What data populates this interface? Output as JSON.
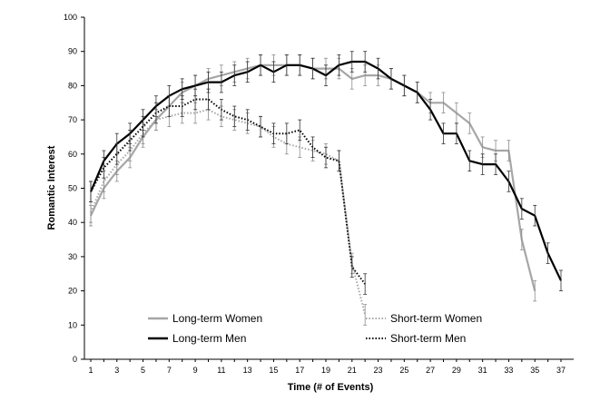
{
  "chart_data": {
    "type": "line",
    "title": "",
    "xlabel": "Time (# of Events)",
    "ylabel": "Romantic Interest",
    "xlim": [
      1,
      37
    ],
    "ylim": [
      0,
      100
    ],
    "x_ticks": [
      1,
      3,
      5,
      7,
      9,
      11,
      13,
      15,
      17,
      19,
      21,
      23,
      25,
      27,
      29,
      31,
      33,
      35,
      37
    ],
    "y_ticks": [
      0,
      10,
      20,
      30,
      40,
      50,
      60,
      70,
      80,
      90,
      100
    ],
    "legend": {
      "placement": "bottom"
    },
    "series": [
      {
        "name": "Long-term Women",
        "color": "#a6a6a6",
        "style": "solid",
        "x": [
          1,
          2,
          3,
          4,
          5,
          6,
          7,
          8,
          9,
          10,
          11,
          12,
          13,
          14,
          15,
          16,
          17,
          18,
          19,
          20,
          21,
          22,
          23,
          24,
          25,
          26,
          27,
          28,
          29,
          30,
          31,
          32,
          33,
          34,
          35
        ],
        "values": [
          42,
          50,
          55,
          59,
          65,
          70,
          74,
          78,
          80,
          82,
          83,
          84,
          85,
          86,
          86,
          86,
          86,
          85,
          85,
          85,
          82,
          83,
          83,
          82,
          80,
          78,
          75,
          75,
          72,
          69,
          62,
          61,
          61,
          35,
          20
        ],
        "error": 3
      },
      {
        "name": "Long-term Men",
        "color": "#000000",
        "style": "solid",
        "x": [
          1,
          2,
          3,
          4,
          5,
          6,
          7,
          8,
          9,
          10,
          11,
          12,
          13,
          14,
          15,
          16,
          17,
          18,
          19,
          20,
          21,
          22,
          23,
          24,
          25,
          26,
          27,
          28,
          29,
          30,
          31,
          32,
          33,
          34,
          35,
          36,
          37
        ],
        "values": [
          49,
          58,
          63,
          66,
          70,
          74,
          77,
          79,
          80,
          81,
          81,
          83,
          84,
          86,
          84,
          86,
          86,
          85,
          83,
          86,
          87,
          87,
          85,
          82,
          80,
          78,
          73,
          66,
          66,
          58,
          57,
          57,
          52,
          44,
          42,
          31,
          23
        ],
        "error": 3
      },
      {
        "name": "Short-term Women",
        "color": "#a6a6a6",
        "style": "dotted",
        "x": [
          1,
          2,
          3,
          4,
          5,
          6,
          7,
          8,
          9,
          10,
          11,
          12,
          13,
          14,
          15,
          16,
          17,
          18,
          19,
          20,
          21,
          22
        ],
        "values": [
          43,
          52,
          57,
          61,
          66,
          70,
          71,
          72,
          72,
          73,
          71,
          70,
          69,
          68,
          65,
          63,
          62,
          61,
          60,
          58,
          28,
          13
        ],
        "error": 3
      },
      {
        "name": "Short-term Men",
        "color": "#000000",
        "style": "dotted",
        "x": [
          1,
          2,
          3,
          4,
          5,
          6,
          7,
          8,
          9,
          10,
          11,
          12,
          13,
          14,
          15,
          16,
          17,
          18,
          19,
          20,
          21,
          22
        ],
        "values": [
          49,
          56,
          60,
          64,
          68,
          72,
          74,
          74,
          76,
          76,
          73,
          71,
          70,
          68,
          66,
          66,
          67,
          62,
          59,
          58,
          27,
          22
        ],
        "error": 3
      }
    ]
  }
}
